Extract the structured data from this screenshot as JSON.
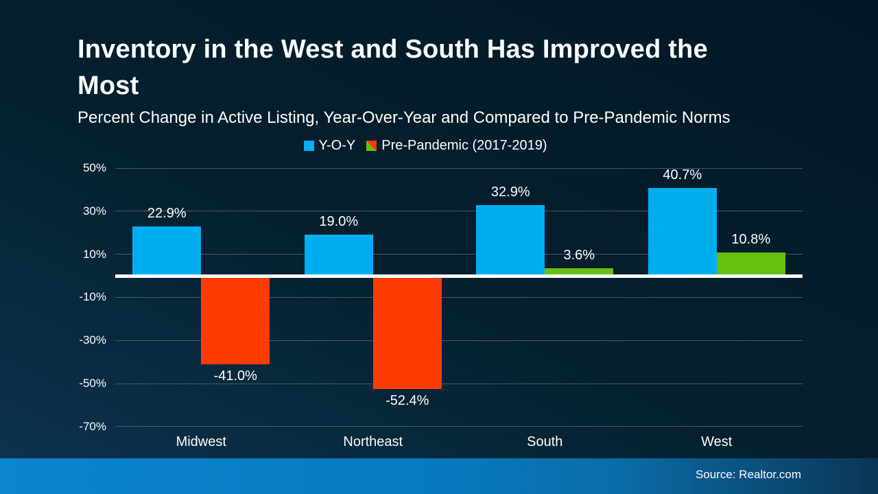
{
  "slide": {
    "title": "Inventory in the West and South Has Improved the Most",
    "subtitle": "Percent Change in Active Listing, Year-Over-Year and Compared to Pre-Pandemic Norms",
    "source": "Source: Realtor.com"
  },
  "colors": {
    "background_top": "#021826",
    "background_bottom_left": "#0d3450",
    "yoy_blue": "#00AEEF",
    "pre_pandemic_positive_green": "#66C010",
    "pre_pandemic_negative_orange": "#FF3C00",
    "gridline": "#4d5965",
    "zero_baseline": "#ffffff",
    "footer_blue": "#0b85cd",
    "text": "#ffffff"
  },
  "legend": {
    "items": [
      {
        "label": "Y-O-Y",
        "swatch": "solid"
      },
      {
        "label": "Pre-Pandemic (2017-2019)",
        "swatch": "split"
      }
    ]
  },
  "chart_data": {
    "type": "bar",
    "title": "Inventory in the West and South Has Improved the Most",
    "subtitle": "Percent Change in Active Listing, Year-Over-Year and Compared to Pre-Pandemic Norms",
    "categories": [
      "Midwest",
      "Northeast",
      "South",
      "West"
    ],
    "series": [
      {
        "name": "Y-O-Y",
        "values": [
          22.9,
          19.0,
          32.9,
          40.7
        ]
      },
      {
        "name": "Pre-Pandemic (2017-2019)",
        "values": [
          -41.0,
          -52.4,
          3.6,
          10.8
        ]
      }
    ],
    "data_labels": [
      [
        "22.9%",
        "19.0%",
        "32.9%",
        "40.7%"
      ],
      [
        "-41.0%",
        "-52.4%",
        "3.6%",
        "10.8%"
      ]
    ],
    "y_ticks": [
      50,
      30,
      10,
      -10,
      -30,
      -50,
      -70
    ],
    "y_tick_labels": [
      "50%",
      "30%",
      "10%",
      "-10%",
      "-30%",
      "-50%",
      "-70%"
    ],
    "ylim": [
      -70,
      50
    ],
    "xlabel": "",
    "ylabel": "",
    "grid": true,
    "legend_position": "top"
  }
}
